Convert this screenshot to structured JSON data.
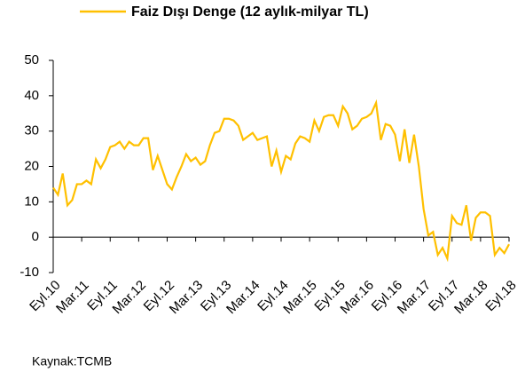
{
  "chart_data": {
    "type": "line",
    "categories": [
      "Eyl.10",
      null,
      null,
      null,
      null,
      null,
      "Mar.11",
      null,
      null,
      null,
      null,
      null,
      "Eyl.11",
      null,
      null,
      null,
      null,
      null,
      "Mar.12",
      null,
      null,
      null,
      null,
      null,
      "Eyl.12",
      null,
      null,
      null,
      null,
      null,
      "Mar.13",
      null,
      null,
      null,
      null,
      null,
      "Eyl.13",
      null,
      null,
      null,
      null,
      null,
      "Mar.14",
      null,
      null,
      null,
      null,
      null,
      "Eyl.14",
      null,
      null,
      null,
      null,
      null,
      "Mar.15",
      null,
      null,
      null,
      null,
      null,
      "Eyl.15",
      null,
      null,
      null,
      null,
      null,
      "Mar.16",
      null,
      null,
      null,
      null,
      null,
      "Eyl.16",
      null,
      null,
      null,
      null,
      null,
      "Mar.17",
      null,
      null,
      null,
      null,
      null,
      "Eyl.17",
      null,
      null,
      null,
      null,
      null,
      "Mar.18",
      null,
      null,
      null,
      null,
      null,
      "Eyl.18"
    ],
    "series": [
      {
        "name": "Faiz Dışı Denge (12 aylık-milyar TL)",
        "color": "#ffc000",
        "values": [
          14,
          12,
          18,
          9,
          10.5,
          15,
          15,
          16,
          15,
          22,
          19.5,
          22,
          25.5,
          26,
          27,
          25,
          27,
          26,
          26,
          28,
          28,
          19,
          23,
          19,
          15,
          13.5,
          17,
          20,
          23.5,
          21.5,
          22.5,
          20.5,
          21.5,
          26,
          29.5,
          30,
          33.5,
          33.5,
          33,
          31.5,
          27.5,
          28.5,
          29.5,
          27.5,
          28,
          28.5,
          20,
          24.5,
          18.5,
          23,
          22,
          26.5,
          28.5,
          28,
          27,
          33,
          30,
          34,
          34.5,
          34.5,
          31.5,
          37,
          35,
          30.5,
          31.5,
          33.5,
          34,
          35,
          38,
          27.5,
          32,
          31.5,
          29,
          21.5,
          30.5,
          21,
          29,
          20,
          8,
          0.5,
          1.5,
          -5,
          -3,
          -6,
          6,
          4,
          3.5,
          9,
          -1,
          5.5,
          7,
          7,
          6,
          -5,
          -3,
          -4.5,
          -2
        ]
      }
    ],
    "ylim": [
      -10,
      50
    ],
    "yticks": [
      -10,
      0,
      10,
      20,
      30,
      40,
      50
    ],
    "legend": "top",
    "source": "Kaynak:TCMB"
  }
}
